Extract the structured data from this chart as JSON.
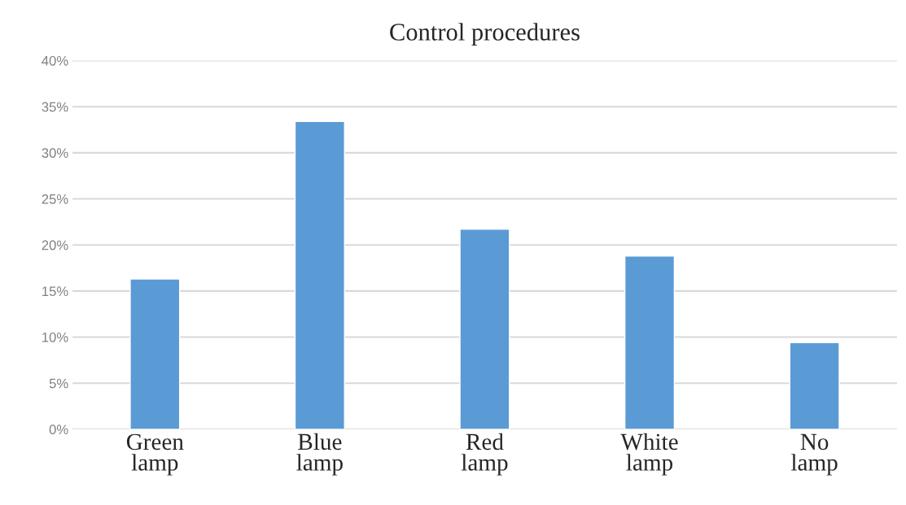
{
  "chart_data": {
    "type": "bar",
    "title": "Control procedures",
    "categories": [
      "Green lamp",
      "Blue lamp",
      "Red lamp",
      "White lamp",
      "No lamp"
    ],
    "values": [
      16.3,
      33.4,
      21.7,
      18.8,
      9.4
    ],
    "color": "#5b9bd5",
    "ylim": [
      0,
      40
    ],
    "yticks": [
      {
        "value": 0,
        "label": "0%"
      },
      {
        "value": 5,
        "label": "5%"
      },
      {
        "value": 10,
        "label": "10%"
      },
      {
        "value": 15,
        "label": "15%"
      },
      {
        "value": 20,
        "label": "20%"
      },
      {
        "value": 25,
        "label": "25%"
      },
      {
        "value": 30,
        "label": "30%"
      },
      {
        "value": 35,
        "label": "35%"
      },
      {
        "value": 40,
        "label": "40%"
      }
    ],
    "grid": "y",
    "legend": false
  }
}
